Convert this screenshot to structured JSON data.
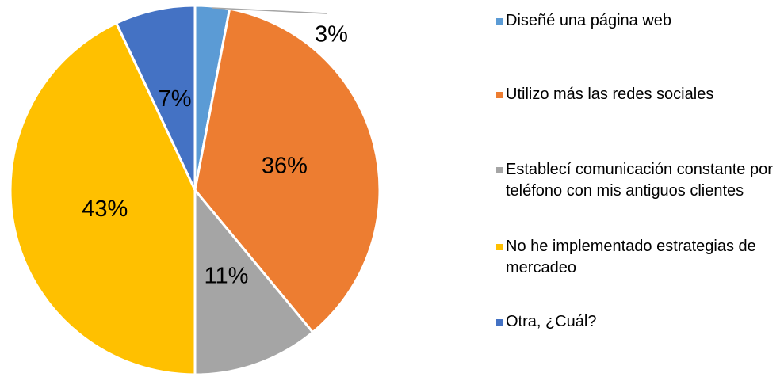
{
  "chart_data": {
    "type": "pie",
    "categories": [
      "Diseñé una página web",
      "Utilizo más las redes sociales",
      "Establecí comunicación constante por teléfono con mis antiguos clientes",
      "No he implementado estrategias de mercadeo",
      "Otra, ¿Cuál?"
    ],
    "values": [
      3,
      36,
      11,
      43,
      7
    ],
    "value_labels": [
      "3%",
      "36%",
      "11%",
      "43%",
      "7%"
    ],
    "colors": [
      "#5b9bd5",
      "#ed7d31",
      "#a5a5a5",
      "#ffc000",
      "#4472c4"
    ],
    "legend": "right"
  }
}
